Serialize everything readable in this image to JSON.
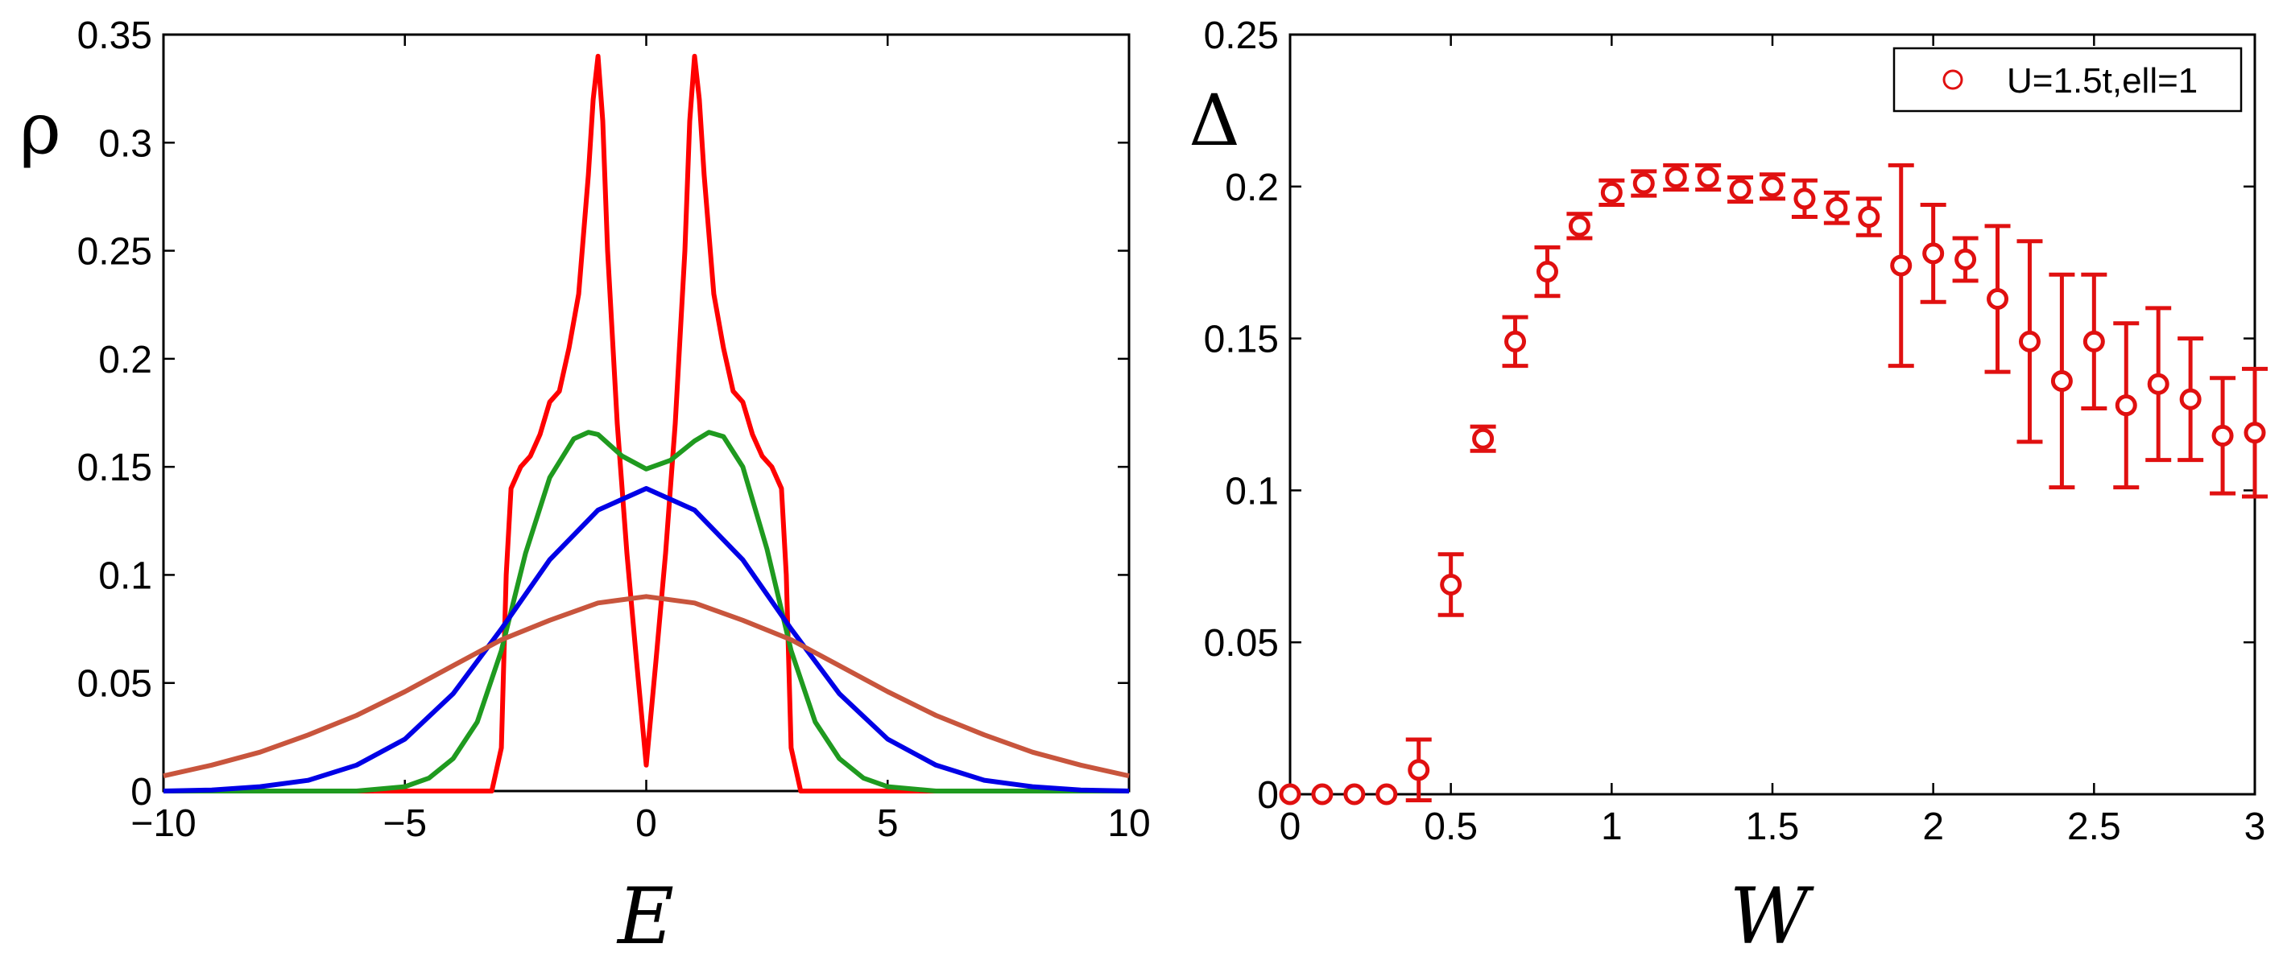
{
  "chart_data": [
    {
      "type": "line",
      "xlabel": "E",
      "ylabel": "ρ",
      "xlim": [
        -10,
        10
      ],
      "ylim": [
        0,
        0.35
      ],
      "xticks": [
        -10,
        -5,
        0,
        5,
        10
      ],
      "xtick_labels": [
        "−10",
        "−5",
        "0",
        "5",
        "10"
      ],
      "yticks": [
        0,
        0.05,
        0.1,
        0.15,
        0.2,
        0.25,
        0.3,
        0.35
      ],
      "ytick_labels": [
        "0",
        "0.05",
        "0.1",
        "0.15",
        "0.2",
        "0.25",
        "0.3",
        "0.35"
      ],
      "grid": false,
      "series": [
        {
          "color": "#ff0000",
          "x": [
            -10,
            -3.2,
            -3.0,
            -2.9,
            -2.8,
            -2.6,
            -2.4,
            -2.2,
            -2.0,
            -1.8,
            -1.6,
            -1.4,
            -1.2,
            -1.1,
            -1.0,
            -0.9,
            -0.8,
            -0.6,
            -0.4,
            -0.2,
            0,
            0.2,
            0.4,
            0.6,
            0.8,
            0.9,
            1.0,
            1.1,
            1.2,
            1.4,
            1.6,
            1.8,
            2.0,
            2.2,
            2.4,
            2.6,
            2.8,
            2.9,
            3.0,
            3.2,
            10
          ],
          "y": [
            0,
            0,
            0.02,
            0.1,
            0.14,
            0.15,
            0.155,
            0.165,
            0.18,
            0.185,
            0.205,
            0.23,
            0.285,
            0.32,
            0.34,
            0.31,
            0.25,
            0.17,
            0.11,
            0.06,
            0.012,
            0.06,
            0.11,
            0.17,
            0.25,
            0.31,
            0.34,
            0.32,
            0.285,
            0.23,
            0.205,
            0.185,
            0.18,
            0.165,
            0.155,
            0.15,
            0.14,
            0.1,
            0.02,
            0,
            0
          ]
        },
        {
          "color": "#1f9a1f",
          "x": [
            -10,
            -6,
            -5,
            -4.5,
            -4,
            -3.5,
            -3,
            -2.5,
            -2,
            -1.5,
            -1.2,
            -1,
            -0.5,
            0,
            0.5,
            1,
            1.3,
            1.6,
            2,
            2.5,
            3,
            3.5,
            4,
            4.5,
            5,
            6,
            10
          ],
          "y": [
            0,
            0,
            0.002,
            0.006,
            0.015,
            0.032,
            0.065,
            0.11,
            0.145,
            0.163,
            0.166,
            0.165,
            0.155,
            0.149,
            0.153,
            0.162,
            0.166,
            0.164,
            0.15,
            0.112,
            0.065,
            0.032,
            0.015,
            0.006,
            0.002,
            0,
            0
          ]
        },
        {
          "color": "#0000e6",
          "x": [
            -10,
            -9,
            -8,
            -7,
            -6,
            -5,
            -4,
            -3,
            -2,
            -1,
            0,
            1,
            2,
            3,
            4,
            5,
            6,
            7,
            8,
            9,
            10
          ],
          "y": [
            0,
            0.0005,
            0.002,
            0.005,
            0.012,
            0.024,
            0.045,
            0.075,
            0.107,
            0.13,
            0.14,
            0.13,
            0.107,
            0.075,
            0.045,
            0.024,
            0.012,
            0.005,
            0.002,
            0.0005,
            0
          ]
        },
        {
          "color": "#c8553d",
          "x": [
            -10,
            -9,
            -8,
            -7,
            -6,
            -5,
            -4,
            -3,
            -2,
            -1,
            0,
            1,
            2,
            3,
            4,
            5,
            6,
            7,
            8,
            9,
            10
          ],
          "y": [
            0.007,
            0.012,
            0.018,
            0.026,
            0.035,
            0.046,
            0.058,
            0.07,
            0.079,
            0.087,
            0.09,
            0.087,
            0.079,
            0.07,
            0.058,
            0.046,
            0.035,
            0.026,
            0.018,
            0.012,
            0.007
          ]
        }
      ]
    },
    {
      "type": "scatter",
      "xlabel": "W",
      "ylabel": "Δ",
      "xlim": [
        0,
        3
      ],
      "ylim": [
        0,
        0.25
      ],
      "xticks": [
        0,
        0.5,
        1,
        1.5,
        2,
        2.5,
        3
      ],
      "xtick_labels": [
        "0",
        "0.5",
        "1",
        "1.5",
        "2",
        "2.5",
        "3"
      ],
      "yticks": [
        0,
        0.05,
        0.1,
        0.15,
        0.2,
        0.25
      ],
      "ytick_labels": [
        "0",
        "0.05",
        "0.1",
        "0.15",
        "0.2",
        "0.25"
      ],
      "grid": false,
      "legend_position": "top-right",
      "series": [
        {
          "name": "U=1.5t,ell=1",
          "color": "#e01010",
          "x": [
            0,
            0.1,
            0.2,
            0.3,
            0.4,
            0.5,
            0.6,
            0.7,
            0.8,
            0.9,
            1.0,
            1.1,
            1.2,
            1.3,
            1.4,
            1.5,
            1.6,
            1.7,
            1.8,
            1.9,
            2.0,
            2.1,
            2.2,
            2.3,
            2.4,
            2.5,
            2.6,
            2.7,
            2.8,
            2.9,
            3.0
          ],
          "y": [
            0,
            0,
            0,
            0,
            0.008,
            0.069,
            0.117,
            0.149,
            0.172,
            0.187,
            0.198,
            0.201,
            0.203,
            0.203,
            0.199,
            0.2,
            0.196,
            0.193,
            0.19,
            0.174,
            0.178,
            0.176,
            0.163,
            0.149,
            0.136,
            0.149,
            0.128,
            0.135,
            0.13,
            0.118,
            0.119
          ],
          "err": [
            0,
            0,
            0,
            0,
            0.01,
            0.01,
            0.004,
            0.008,
            0.008,
            0.004,
            0.004,
            0.004,
            0.004,
            0.004,
            0.004,
            0.004,
            0.006,
            0.005,
            0.006,
            0.033,
            0.016,
            0.007,
            0.024,
            0.033,
            0.035,
            0.022,
            0.027,
            0.025,
            0.02,
            0.019,
            0.021
          ]
        }
      ]
    }
  ]
}
